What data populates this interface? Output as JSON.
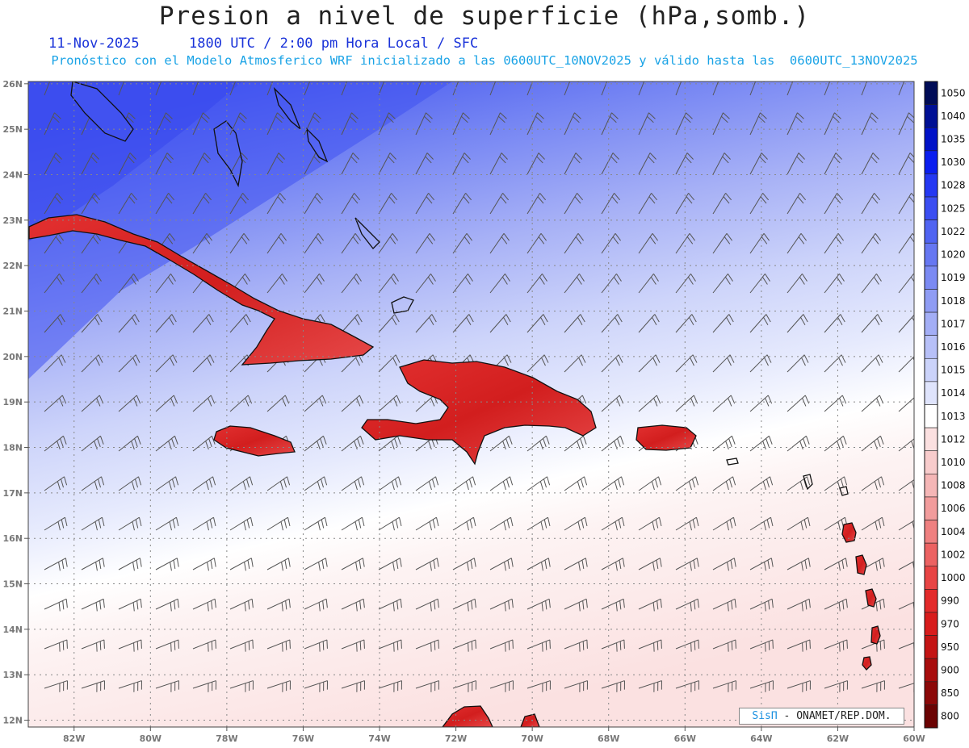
{
  "header": {
    "title": "Presion a nivel de superficie (hPa,somb.)",
    "date": "11-Nov-2025",
    "time": "1800 UTC / 2:00 pm Hora Local / SFC",
    "model_line": "Pronóstico con el Modelo Atmosferico WRF inicializado a las 0600UTC_10NOV2025 y válido hasta las  0600UTC_13NOV2025"
  },
  "map": {
    "lon_range": [
      -83.2,
      -60
    ],
    "lat_range": [
      11.85,
      26.05
    ],
    "lon_ticks": [
      "82W",
      "80W",
      "78W",
      "76W",
      "74W",
      "72W",
      "70W",
      "68W",
      "66W",
      "64W",
      "62W",
      "60W"
    ],
    "lat_ticks": [
      "12N",
      "13N",
      "14N",
      "15N",
      "16N",
      "17N",
      "18N",
      "19N",
      "20N",
      "21N",
      "22N",
      "23N",
      "24N",
      "25N",
      "26N"
    ],
    "field": "surface pressure (hPa), shaded",
    "overlay": "wind barbs",
    "grid": "dotted"
  },
  "colorbar": {
    "levels": [
      "1050",
      "1040",
      "1035",
      "1030",
      "1028",
      "1025",
      "1022",
      "1020",
      "1019",
      "1018",
      "1017",
      "1016",
      "1015",
      "1014",
      "1013",
      "1012",
      "1010",
      "1008",
      "1006",
      "1004",
      "1002",
      "1000",
      "990",
      "970",
      "950",
      "900",
      "850",
      "800"
    ],
    "colors": [
      "#000c57",
      "#001095",
      "#0012c8",
      "#0a1eef",
      "#2438f3",
      "#3b4ef2",
      "#5064f2",
      "#6677f2",
      "#7b8af3",
      "#8f9cf4",
      "#a3aef6",
      "#b7c0f8",
      "#cbd3fa",
      "#dfe4fc",
      "#ffffff",
      "#fbe0e0",
      "#f8cccc",
      "#f5b6b6",
      "#f29c9c",
      "#ef8080",
      "#ec6262",
      "#e84444",
      "#e32a2a",
      "#d81c1c",
      "#c41414",
      "#a80d0d",
      "#8c0808",
      "#6b0303"
    ]
  },
  "credit": {
    "brand": "SisΠ",
    "sep": " - ",
    "text": "ONAMET/REP.DOM."
  }
}
